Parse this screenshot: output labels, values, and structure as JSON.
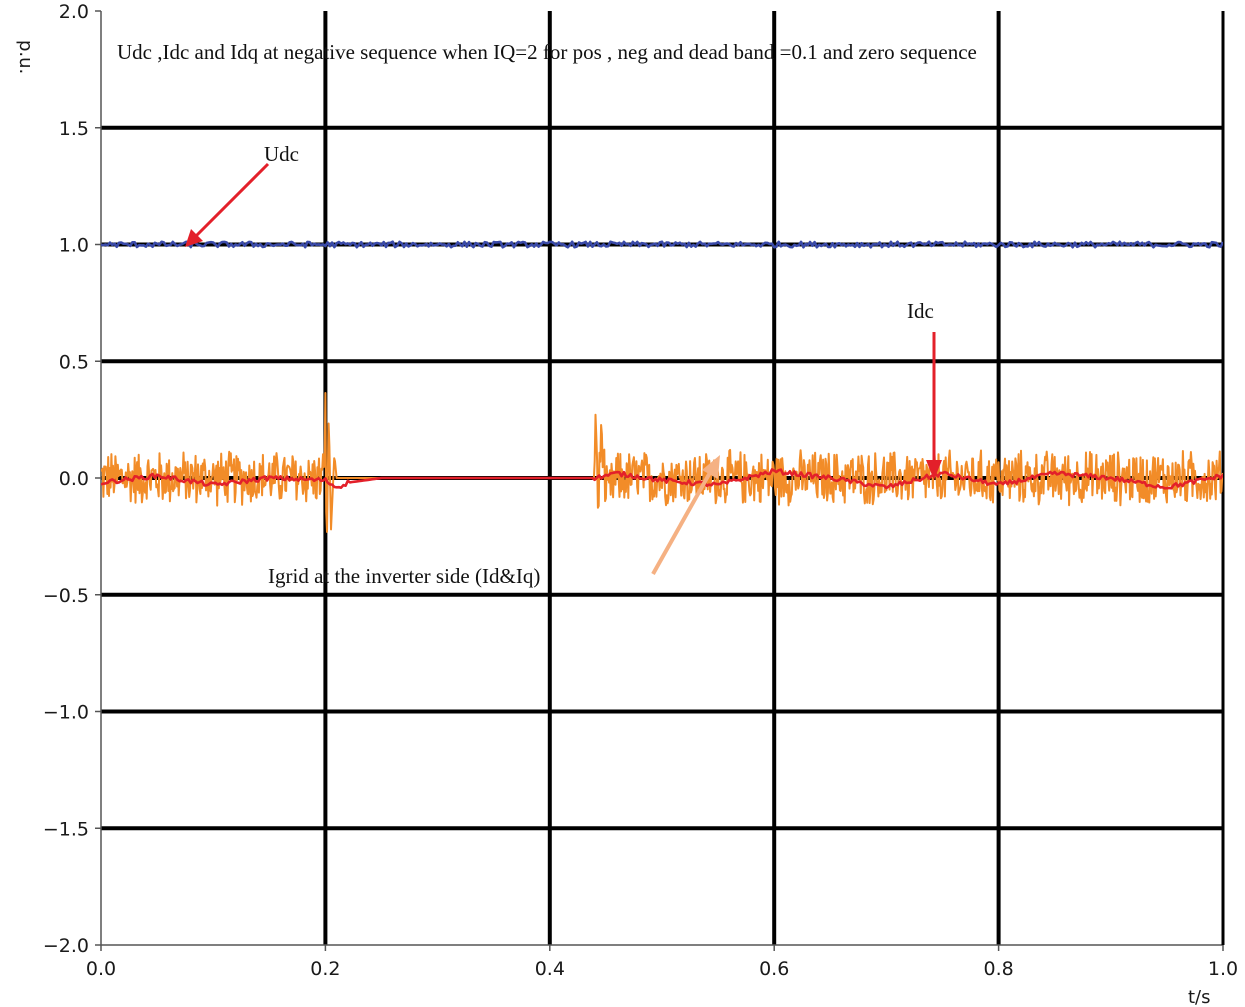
{
  "chart_data": {
    "type": "line",
    "title": "Udc ,Idc and Idq at negative sequence when IQ=2 for  pos , neg and dead band =0.1 and zero sequence",
    "xlabel": "t/s",
    "ylabel": "p.u.",
    "xlim": [
      0.0,
      1.0
    ],
    "ylim": [
      -2.0,
      2.0
    ],
    "x_ticks": [
      "0.0",
      "0.2",
      "0.4",
      "0.6",
      "0.8",
      "1.0"
    ],
    "y_ticks": [
      "2.0",
      "1.5",
      "1.0",
      "0.5",
      "0.0",
      "−0.5",
      "−1.0",
      "−1.5",
      "−2.0"
    ],
    "grid": true,
    "annotations": [
      {
        "id": "udc",
        "text": "Udc"
      },
      {
        "id": "idc",
        "text": "Idc"
      },
      {
        "id": "igrid",
        "text": "Igrid at the inverter side (Id&Iq)"
      }
    ],
    "series": [
      {
        "name": "Udc",
        "color": "#3a4aa8",
        "x": [
          0.0,
          0.1,
          0.2,
          0.3,
          0.4,
          0.5,
          0.6,
          0.7,
          0.8,
          0.9,
          1.0
        ],
        "y": [
          1.0,
          1.0,
          1.0,
          1.0,
          1.0,
          1.0,
          1.0,
          1.0,
          1.0,
          1.0,
          1.0
        ]
      },
      {
        "name": "Idc",
        "color": "#e3202a",
        "x": [
          0.0,
          0.05,
          0.1,
          0.15,
          0.2,
          0.21,
          0.22,
          0.25,
          0.3,
          0.35,
          0.4,
          0.44,
          0.46,
          0.5,
          0.55,
          0.6,
          0.65,
          0.7,
          0.75,
          0.8,
          0.85,
          0.9,
          0.95,
          1.0
        ],
        "y": [
          -0.02,
          0.01,
          -0.03,
          0.0,
          -0.01,
          -0.04,
          -0.02,
          0.0,
          0.0,
          0.0,
          0.0,
          0.0,
          0.02,
          -0.01,
          -0.03,
          0.03,
          0.0,
          -0.04,
          0.02,
          -0.03,
          0.02,
          0.0,
          -0.04,
          0.01
        ]
      },
      {
        "name": "Igrid at the inverter side (Id&Iq)",
        "color": "#f28c28",
        "x": [
          0.0,
          0.199,
          0.2,
          0.201,
          0.203,
          0.205,
          0.208,
          0.21,
          0.44,
          0.441,
          0.443,
          0.446,
          0.45,
          0.46,
          1.0
        ],
        "y": [
          0.0,
          0.0,
          0.42,
          -0.37,
          0.28,
          -0.22,
          0.1,
          0.0,
          0.0,
          0.33,
          -0.15,
          0.22,
          -0.08,
          0.0,
          0.0
        ],
        "ripple_amplitude": 0.13,
        "ripple_intervals": [
          [
            0.0,
            0.2
          ],
          [
            0.44,
            1.0
          ]
        ]
      }
    ]
  }
}
